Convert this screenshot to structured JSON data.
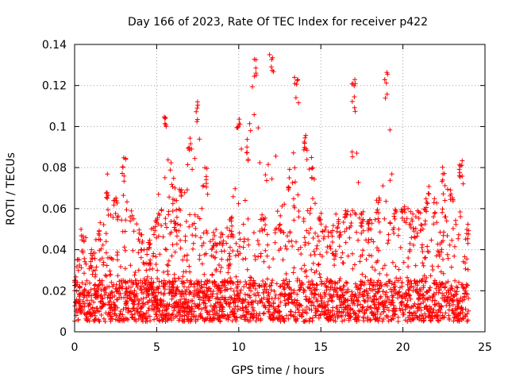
{
  "chart_data": {
    "type": "scatter",
    "title": "Day 166 of 2023, Rate Of TEC Index for receiver p422",
    "xlabel": "GPS time / hours",
    "ylabel": "ROTI / TECUs",
    "xlim": [
      0,
      25
    ],
    "ylim": [
      0,
      0.14
    ],
    "x_ticks": [
      "0",
      "5",
      "10",
      "15",
      "20",
      "25"
    ],
    "y_ticks": [
      "0",
      "0.02",
      "0.04",
      "0.06",
      "0.08",
      "0.1",
      "0.12",
      "0.14"
    ],
    "grid": true,
    "marker": "+",
    "color": "#ff0000",
    "x_range_of_data": [
      0,
      24
    ],
    "envelope": [
      {
        "x": 0.0,
        "y": 0.03
      },
      {
        "x": 0.5,
        "y": 0.05
      },
      {
        "x": 1.0,
        "y": 0.04
      },
      {
        "x": 1.5,
        "y": 0.05
      },
      {
        "x": 2.0,
        "y": 0.077
      },
      {
        "x": 2.5,
        "y": 0.065
      },
      {
        "x": 3.0,
        "y": 0.085
      },
      {
        "x": 3.5,
        "y": 0.06
      },
      {
        "x": 4.0,
        "y": 0.05
      },
      {
        "x": 4.5,
        "y": 0.045
      },
      {
        "x": 5.0,
        "y": 0.06
      },
      {
        "x": 5.5,
        "y": 0.108
      },
      {
        "x": 6.0,
        "y": 0.075
      },
      {
        "x": 6.5,
        "y": 0.072
      },
      {
        "x": 7.0,
        "y": 0.093
      },
      {
        "x": 7.5,
        "y": 0.113
      },
      {
        "x": 8.0,
        "y": 0.08
      },
      {
        "x": 8.5,
        "y": 0.05
      },
      {
        "x": 9.0,
        "y": 0.048
      },
      {
        "x": 9.5,
        "y": 0.058
      },
      {
        "x": 10.0,
        "y": 0.108
      },
      {
        "x": 10.5,
        "y": 0.095
      },
      {
        "x": 11.0,
        "y": 0.134
      },
      {
        "x": 11.5,
        "y": 0.06
      },
      {
        "x": 12.0,
        "y": 0.136
      },
      {
        "x": 12.5,
        "y": 0.06
      },
      {
        "x": 13.0,
        "y": 0.08
      },
      {
        "x": 13.5,
        "y": 0.126
      },
      {
        "x": 14.0,
        "y": 0.1
      },
      {
        "x": 14.5,
        "y": 0.085
      },
      {
        "x": 15.0,
        "y": 0.06
      },
      {
        "x": 15.5,
        "y": 0.05
      },
      {
        "x": 16.0,
        "y": 0.06
      },
      {
        "x": 16.5,
        "y": 0.06
      },
      {
        "x": 17.0,
        "y": 0.124
      },
      {
        "x": 17.5,
        "y": 0.06
      },
      {
        "x": 18.0,
        "y": 0.055
      },
      {
        "x": 18.5,
        "y": 0.065
      },
      {
        "x": 19.0,
        "y": 0.127
      },
      {
        "x": 19.5,
        "y": 0.06
      },
      {
        "x": 20.0,
        "y": 0.065
      },
      {
        "x": 20.5,
        "y": 0.06
      },
      {
        "x": 21.0,
        "y": 0.06
      },
      {
        "x": 21.5,
        "y": 0.071
      },
      {
        "x": 22.0,
        "y": 0.065
      },
      {
        "x": 22.5,
        "y": 0.082
      },
      {
        "x": 23.0,
        "y": 0.07
      },
      {
        "x": 23.5,
        "y": 0.084
      },
      {
        "x": 24.0,
        "y": 0.055
      }
    ],
    "baseline_band": [
      0.005,
      0.025
    ]
  }
}
